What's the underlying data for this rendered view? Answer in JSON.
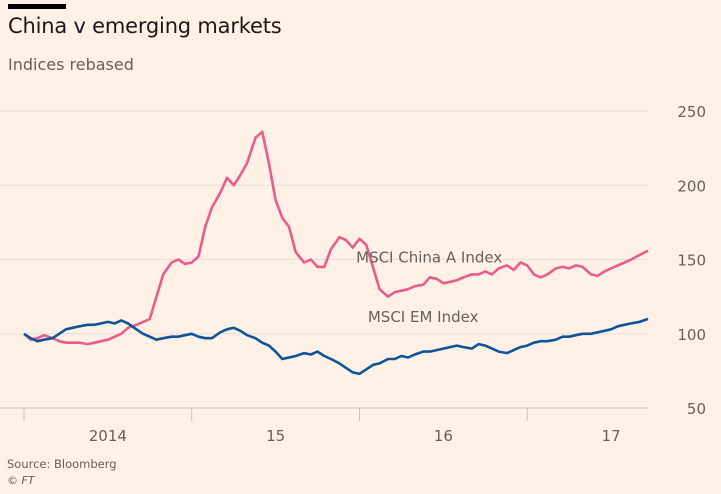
{
  "chart_data": {
    "type": "line",
    "title": "China v emerging markets",
    "subtitle": "Indices rebased",
    "xlabel": "",
    "ylabel": "",
    "ylim": [
      50,
      250
    ],
    "yticks": [
      50,
      100,
      150,
      200,
      250
    ],
    "ytick_labels": [
      "50",
      "100",
      "150",
      "200",
      "250"
    ],
    "x_range": [
      2014.0,
      2017.72
    ],
    "xtick_positions": [
      2014.0,
      2015.0,
      2016.0,
      2017.0
    ],
    "xtick_labels": [
      {
        "label": "2014",
        "at": 2014.5
      },
      {
        "label": "15",
        "at": 2015.5
      },
      {
        "label": "16",
        "at": 2016.5
      },
      {
        "label": "17",
        "at": 2017.5
      }
    ],
    "grid": true,
    "x": [
      2014.0,
      2014.04,
      2014.08,
      2014.12,
      2014.17,
      2014.21,
      2014.25,
      2014.29,
      2014.33,
      2014.38,
      2014.42,
      2014.46,
      2014.5,
      2014.54,
      2014.58,
      2014.62,
      2014.67,
      2014.71,
      2014.75,
      2014.79,
      2014.83,
      2014.88,
      2014.92,
      2014.96,
      2015.0,
      2015.04,
      2015.08,
      2015.12,
      2015.17,
      2015.21,
      2015.25,
      2015.29,
      2015.33,
      2015.38,
      2015.42,
      2015.46,
      2015.5,
      2015.54,
      2015.58,
      2015.62,
      2015.67,
      2015.71,
      2015.75,
      2015.79,
      2015.83,
      2015.88,
      2015.92,
      2015.96,
      2016.0,
      2016.04,
      2016.08,
      2016.12,
      2016.17,
      2016.21,
      2016.25,
      2016.29,
      2016.33,
      2016.38,
      2016.42,
      2016.46,
      2016.5,
      2016.54,
      2016.58,
      2016.62,
      2016.67,
      2016.71,
      2016.75,
      2016.79,
      2016.83,
      2016.88,
      2016.92,
      2016.96,
      2017.0,
      2017.04,
      2017.08,
      2017.12,
      2017.17,
      2017.21,
      2017.25,
      2017.29,
      2017.33,
      2017.38,
      2017.42,
      2017.46,
      2017.5,
      2017.54,
      2017.58,
      2017.62,
      2017.67,
      2017.72
    ],
    "series": [
      {
        "name": "MSCI China A Index",
        "color": "#e95d8c",
        "label_at": [
          2015.98,
          148
        ],
        "values": [
          100,
          96,
          97,
          99,
          97,
          95,
          94,
          94,
          94,
          93,
          94,
          95,
          96,
          98,
          100,
          104,
          106,
          108,
          110,
          125,
          140,
          148,
          150,
          147,
          148,
          152,
          172,
          185,
          195,
          205,
          200,
          207,
          215,
          232,
          236,
          215,
          190,
          178,
          172,
          155,
          148,
          150,
          145,
          145,
          157,
          165,
          163,
          158,
          164,
          160,
          145,
          130,
          125,
          128,
          129,
          130,
          132,
          133,
          138,
          137,
          134,
          135,
          136,
          138,
          140,
          140,
          142,
          140,
          144,
          146,
          143,
          148,
          146,
          140,
          138,
          140,
          144,
          145,
          144,
          146,
          145,
          140,
          139,
          142,
          144,
          146,
          148,
          150,
          153,
          156
        ]
      },
      {
        "name": "MSCI EM Index",
        "color": "#0f5499",
        "label_at": [
          2016.05,
          108
        ],
        "values": [
          100,
          97,
          95,
          96,
          97,
          100,
          103,
          104,
          105,
          106,
          106,
          107,
          108,
          107,
          109,
          107,
          103,
          100,
          98,
          96,
          97,
          98,
          98,
          99,
          100,
          98,
          97,
          97,
          101,
          103,
          104,
          102,
          99,
          97,
          94,
          92,
          88,
          83,
          84,
          85,
          87,
          86,
          88,
          85,
          83,
          80,
          77,
          74,
          73,
          76,
          79,
          80,
          83,
          83,
          85,
          84,
          86,
          88,
          88,
          89,
          90,
          91,
          92,
          91,
          90,
          93,
          92,
          90,
          88,
          87,
          89,
          91,
          92,
          94,
          95,
          95,
          96,
          98,
          98,
          99,
          100,
          100,
          101,
          102,
          103,
          105,
          106,
          107,
          108,
          110
        ]
      }
    ]
  },
  "source": "Source: Bloomberg",
  "credit": "© FT"
}
